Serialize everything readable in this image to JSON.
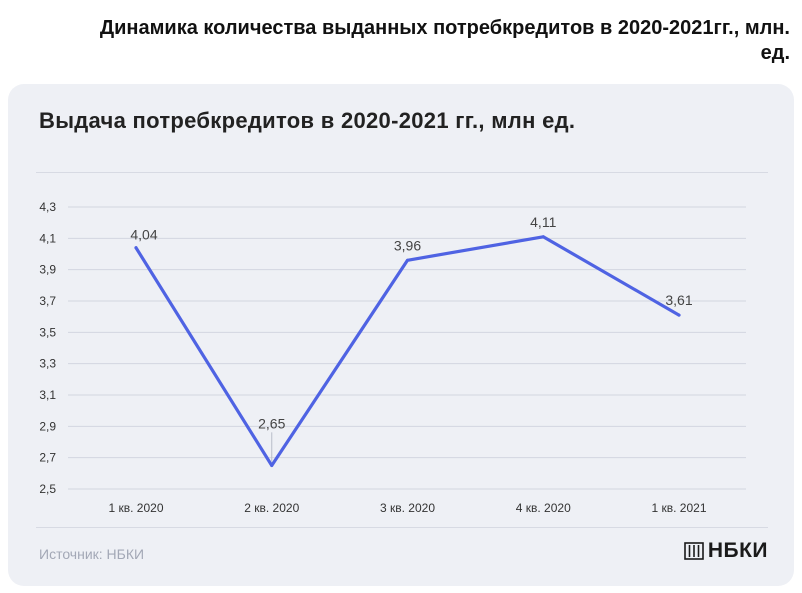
{
  "heading": "Динамика количества выданных потребкредитов в 2020-2021гг., млн. ед.",
  "footer": {
    "source": "Источник: НБКИ",
    "brand": "НБКИ",
    "brand_icon": "columns-logo-icon"
  },
  "colors": {
    "line": "#4f63e3",
    "grid": "#d2d6e0",
    "card": "#eef0f5"
  },
  "chart_data": {
    "type": "line",
    "title": "Выдача потребкредитов в 2020-2021 гг., млн ед.",
    "categories": [
      "1 кв. 2020",
      "2 кв. 2020",
      "3 кв. 2020",
      "4 кв. 2020",
      "1 кв. 2021"
    ],
    "series": [
      {
        "values": [
          4.04,
          2.65,
          3.96,
          4.11,
          3.61
        ]
      }
    ],
    "data_labels": [
      "4,04",
      "2,65",
      "3,96",
      "4,11",
      "3,61"
    ],
    "y_ticks": [
      "4,3",
      "4,1",
      "3,9",
      "3,7",
      "3,5",
      "3,3",
      "3,1",
      "2,9",
      "2,7",
      "2,5"
    ],
    "ylim": [
      2.5,
      4.3
    ],
    "grid": true,
    "legend": "none"
  }
}
